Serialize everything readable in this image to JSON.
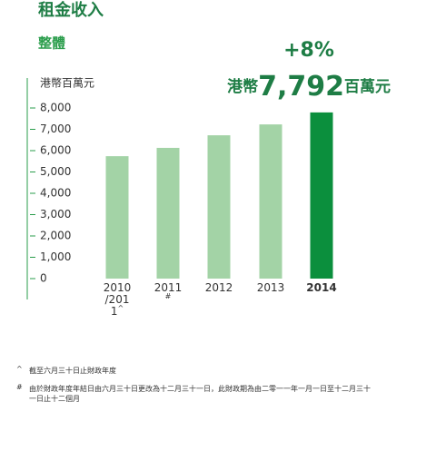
{
  "chart_data": {
    "type": "bar",
    "title": "租金收入",
    "subtitle": "整體",
    "y_label": "港幣百萬元",
    "highlight": {
      "change": "+8%",
      "prefix": "港幣",
      "value": "7,792",
      "unit": "百萬元"
    },
    "categories": [
      "2010/2011",
      "2011",
      "2012",
      "2013",
      "2014"
    ],
    "category_marks": [
      "^",
      "#",
      null,
      null,
      null
    ],
    "values": [
      5740,
      6130,
      6720,
      7230,
      7792
    ],
    "colors": [
      "#a3d3a6",
      "#a3d3a6",
      "#a3d3a6",
      "#a3d3a6",
      "#0b8f3d"
    ],
    "ylim": [
      0,
      8000
    ],
    "yticks": [
      0,
      {
        "value": 1000,
        "label": "1,000"
      },
      {
        "value": 2000,
        "label": "2,000"
      },
      {
        "value": 3000,
        "label": "3,000"
      },
      {
        "value": 4000,
        "label": "4,000"
      },
      {
        "value": 5000,
        "label": "5,000"
      },
      {
        "value": 6000,
        "label": "6,000"
      },
      {
        "value": 7000,
        "label": "7,000"
      },
      {
        "value": 8000,
        "label": "8,000"
      }
    ],
    "footnotes": [
      {
        "mark": "^",
        "text": "截至六月三十日止財政年度"
      },
      {
        "mark": "#",
        "text": "由於財政年度年結日由六月三十日更改為十二月三十一日，此財政期為由二零一一年一月一日至十二月三十一日止十二個月"
      }
    ]
  }
}
